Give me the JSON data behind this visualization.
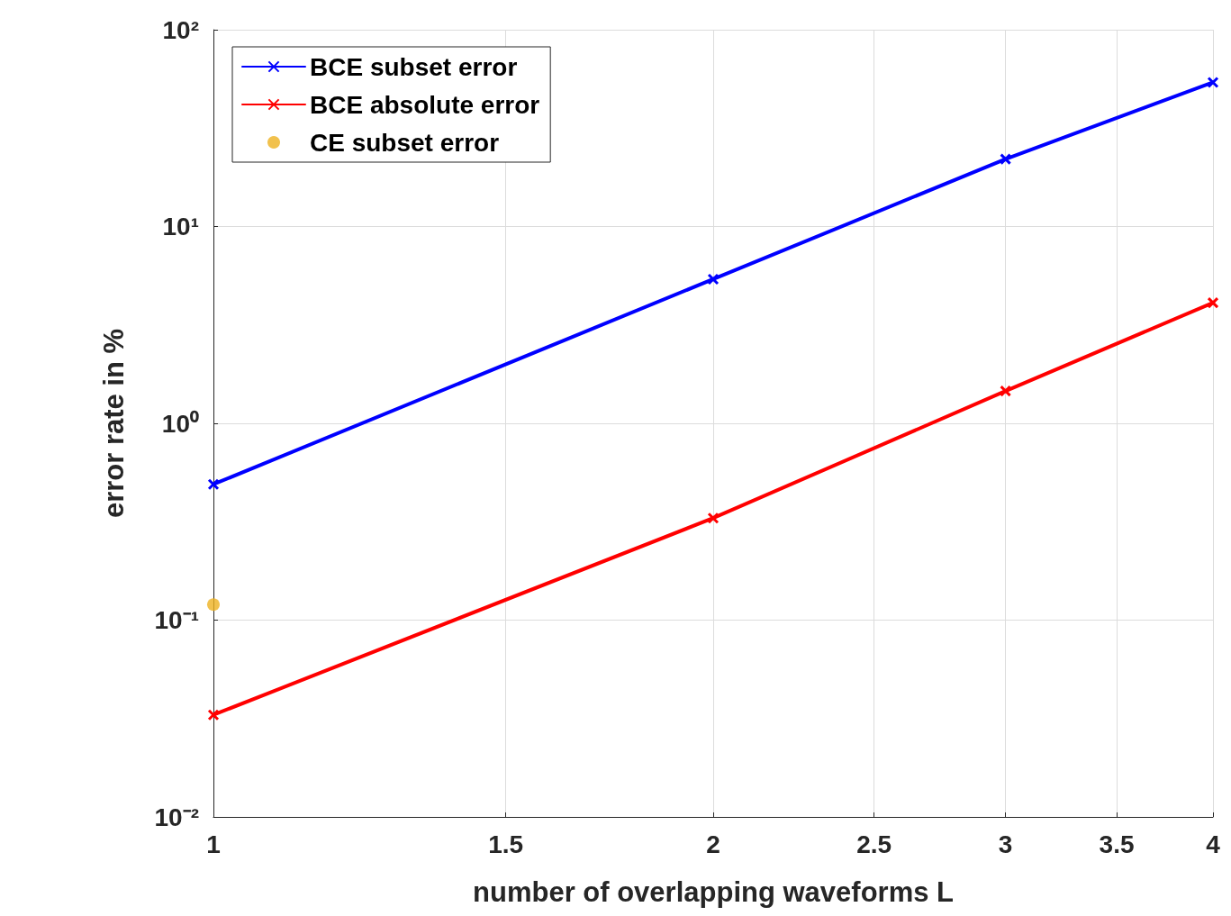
{
  "chart_data": {
    "type": "line",
    "xlabel": "number of overlapping waveforms L",
    "ylabel": "error rate in %",
    "log": "xy",
    "grid": true,
    "legend": "top left",
    "line_style": "solid",
    "xlim": [
      1,
      4
    ],
    "xticks": [
      1,
      1.5,
      2,
      2.5,
      3,
      3.5,
      4
    ],
    "ylim": [
      0.01,
      100
    ],
    "yticks": [
      {
        "value": 0.01,
        "label": "10⁻²"
      },
      {
        "value": 0.1,
        "label": "10⁻¹"
      },
      {
        "value": 1,
        "label": "10⁰"
      },
      {
        "value": 10,
        "label": "10¹"
      },
      {
        "value": 100,
        "label": "10²"
      }
    ],
    "series": [
      {
        "name": "BCE subset error",
        "color": "#0000ff",
        "marker": "cross",
        "x": [
          1,
          2,
          3,
          4
        ],
        "values": [
          0.49,
          5.4,
          22,
          54
        ]
      },
      {
        "name": "BCE absolute error",
        "color": "#ff0000",
        "marker": "cross",
        "x": [
          1,
          2,
          3,
          4
        ],
        "values": [
          0.033,
          0.33,
          1.46,
          4.1
        ]
      },
      {
        "name": "CE subset error",
        "type": "scatter",
        "color": "#edb120",
        "marker": "circle",
        "x": [
          1
        ],
        "values": [
          0.12
        ]
      }
    ]
  }
}
